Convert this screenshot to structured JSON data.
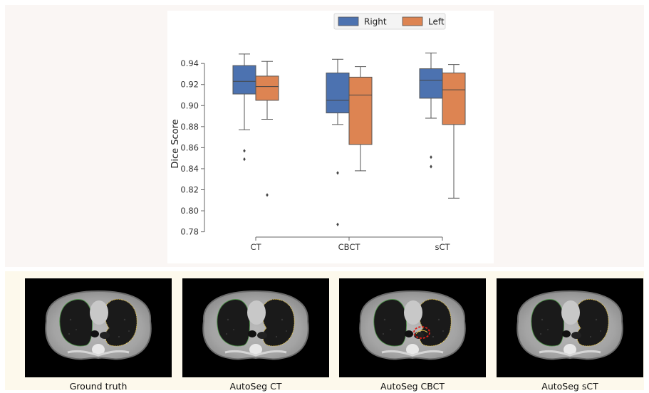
{
  "chart_data": {
    "type": "box",
    "title": "",
    "xlabel": "",
    "ylabel": "Dice Score",
    "ylim": [
      0.775,
      0.955
    ],
    "yticks": [
      "0.78",
      "0.80",
      "0.82",
      "0.84",
      "0.86",
      "0.88",
      "0.90",
      "0.92",
      "0.94"
    ],
    "categories": [
      "CT",
      "CBCT",
      "sCT"
    ],
    "legend_position": "top-right",
    "grid": false,
    "series": [
      {
        "name": "Right",
        "color": "#4c72b0",
        "boxes": [
          {
            "whisker_low": 0.877,
            "q1": 0.911,
            "median": 0.923,
            "q3": 0.938,
            "whisker_high": 0.949,
            "outliers": [
              0.857,
              0.849
            ]
          },
          {
            "whisker_low": 0.882,
            "q1": 0.893,
            "median": 0.905,
            "q3": 0.931,
            "whisker_high": 0.944,
            "outliers": [
              0.836,
              0.787
            ]
          },
          {
            "whisker_low": 0.888,
            "q1": 0.907,
            "median": 0.924,
            "q3": 0.935,
            "whisker_high": 0.95,
            "outliers": [
              0.851,
              0.842
            ]
          }
        ]
      },
      {
        "name": "Left",
        "color": "#dd8452",
        "boxes": [
          {
            "whisker_low": 0.887,
            "q1": 0.905,
            "median": 0.918,
            "q3": 0.928,
            "whisker_high": 0.942,
            "outliers": [
              0.815
            ]
          },
          {
            "whisker_low": 0.838,
            "q1": 0.863,
            "median": 0.91,
            "q3": 0.927,
            "whisker_high": 0.937,
            "outliers": []
          },
          {
            "whisker_low": 0.812,
            "q1": 0.882,
            "median": 0.915,
            "q3": 0.931,
            "whisker_high": 0.939,
            "outliers": []
          }
        ]
      }
    ]
  },
  "images": {
    "panels": [
      {
        "caption": "Ground truth",
        "highlight": false
      },
      {
        "caption": "AutoSeg CT",
        "highlight": false
      },
      {
        "caption": "AutoSeg CBCT",
        "highlight": true
      },
      {
        "caption": "AutoSeg sCT",
        "highlight": false
      }
    ],
    "right_lung_contour_color": "#4f8f4a",
    "left_lung_contour_color": "#e0c04a",
    "highlight_color": "#e0201a"
  }
}
